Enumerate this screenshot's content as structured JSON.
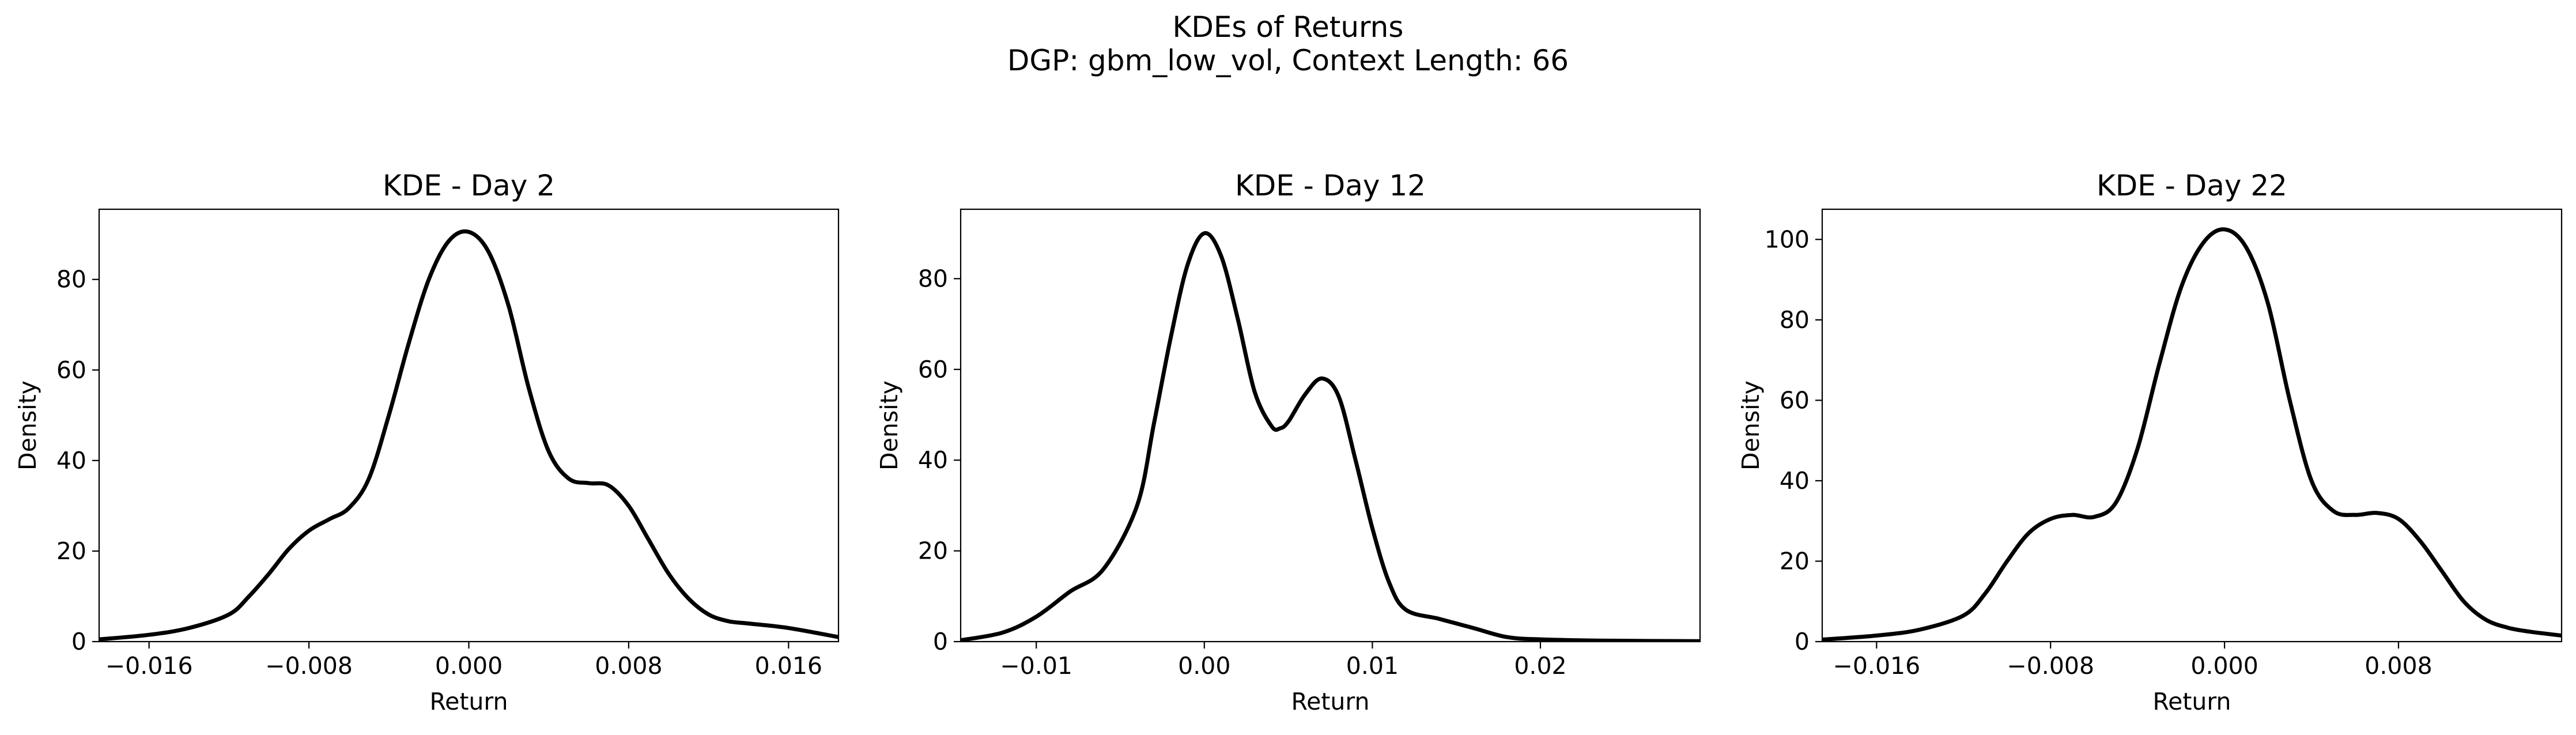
{
  "figure": {
    "title_line1": "KDEs of Returns",
    "title_line2": "DGP: gbm_low_vol, Context Length: 66"
  },
  "style": {
    "line_color": "#000000",
    "background": "#ffffff"
  },
  "chart_data": [
    {
      "type": "line",
      "title": "KDE - Day 2",
      "xlabel": "Return",
      "ylabel": "Density",
      "xlim": [
        -0.0185,
        0.0185
      ],
      "ylim": [
        0,
        95.5
      ],
      "xticks": [
        -0.016,
        -0.008,
        0.0,
        0.008,
        0.016
      ],
      "xtick_labels": [
        "−0.016",
        "−0.008",
        "0.000",
        "0.008",
        "0.016"
      ],
      "yticks": [
        0,
        20,
        40,
        60,
        80
      ],
      "ytick_labels": [
        "0",
        "20",
        "40",
        "60",
        "80"
      ],
      "grid": false,
      "series": [
        {
          "x": [
            -0.0185,
            -0.016,
            -0.014,
            -0.012,
            -0.011,
            -0.01,
            -0.009,
            -0.008,
            -0.007,
            -0.006,
            -0.005,
            -0.004,
            -0.003,
            -0.002,
            -0.001,
            0.0,
            0.001,
            0.002,
            0.003,
            0.004,
            0.005,
            0.006,
            0.007,
            0.008,
            0.009,
            0.01,
            0.011,
            0.012,
            0.013,
            0.014,
            0.016,
            0.0185
          ],
          "y": [
            0.5,
            1.5,
            3.0,
            6.0,
            10.0,
            15.0,
            20.5,
            24.5,
            27.0,
            29.5,
            36.0,
            50.0,
            66.0,
            80.0,
            88.5,
            90.5,
            86.0,
            74.0,
            56.0,
            42.0,
            36.0,
            35.0,
            34.5,
            30.0,
            22.5,
            15.0,
            9.5,
            6.0,
            4.5,
            4.0,
            3.0,
            1.0
          ]
        }
      ]
    },
    {
      "type": "line",
      "title": "KDE - Day 12",
      "xlabel": "Return",
      "ylabel": "Density",
      "xlim": [
        -0.0145,
        0.0295
      ],
      "ylim": [
        0,
        95.3
      ],
      "xticks": [
        -0.01,
        0.0,
        0.01,
        0.02
      ],
      "xtick_labels": [
        "−0.01",
        "0.00",
        "0.01",
        "0.02"
      ],
      "yticks": [
        0,
        20,
        40,
        60,
        80
      ],
      "ytick_labels": [
        "0",
        "20",
        "40",
        "60",
        "80"
      ],
      "grid": false,
      "series": [
        {
          "x": [
            -0.0145,
            -0.012,
            -0.01,
            -0.008,
            -0.006,
            -0.004,
            -0.003,
            -0.002,
            -0.001,
            0.0,
            0.001,
            0.002,
            0.003,
            0.004,
            0.0045,
            0.005,
            0.006,
            0.007,
            0.008,
            0.009,
            0.01,
            0.011,
            0.012,
            0.014,
            0.016,
            0.018,
            0.02,
            0.024,
            0.0295
          ],
          "y": [
            0.3,
            2.0,
            5.5,
            11.0,
            16.0,
            30.0,
            48.0,
            67.0,
            83.0,
            90.0,
            85.0,
            71.0,
            55.0,
            47.5,
            47.0,
            48.5,
            54.5,
            58.0,
            54.0,
            40.0,
            25.0,
            13.0,
            7.0,
            5.0,
            3.0,
            1.0,
            0.5,
            0.2,
            0.1
          ]
        }
      ]
    },
    {
      "type": "line",
      "title": "KDE - Day 22",
      "xlabel": "Return",
      "ylabel": "Density",
      "xlim": [
        -0.0185,
        0.0155
      ],
      "ylim": [
        0,
        107.5
      ],
      "xticks": [
        -0.016,
        -0.008,
        0.0,
        0.008
      ],
      "xtick_labels": [
        "−0.016",
        "−0.008",
        "0.000",
        "0.008"
      ],
      "yticks": [
        0,
        20,
        40,
        60,
        80,
        100
      ],
      "ytick_labels": [
        "0",
        "20",
        "40",
        "60",
        "80",
        "100"
      ],
      "grid": false,
      "series": [
        {
          "x": [
            -0.0185,
            -0.016,
            -0.014,
            -0.012,
            -0.011,
            -0.01,
            -0.009,
            -0.008,
            -0.007,
            -0.006,
            -0.005,
            -0.004,
            -0.003,
            -0.002,
            -0.001,
            0.0,
            0.001,
            0.002,
            0.003,
            0.004,
            0.005,
            0.006,
            0.007,
            0.008,
            0.009,
            0.01,
            0.011,
            0.012,
            0.013,
            0.014,
            0.0155
          ],
          "y": [
            0.5,
            1.5,
            3.0,
            6.5,
            12.0,
            20.0,
            27.0,
            30.5,
            31.5,
            31.0,
            34.5,
            48.0,
            69.0,
            88.0,
            99.0,
            102.5,
            98.0,
            84.0,
            60.0,
            40.0,
            32.5,
            31.5,
            32.0,
            30.5,
            25.0,
            17.5,
            10.0,
            5.5,
            3.5,
            2.5,
            1.5
          ]
        }
      ]
    }
  ]
}
